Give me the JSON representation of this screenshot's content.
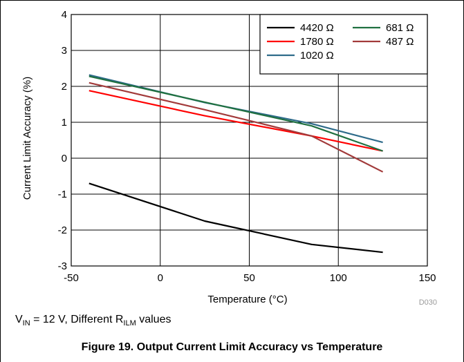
{
  "chart_data": {
    "type": "line",
    "xlabel": "Temperature (°C)",
    "ylabel": "Current Limit Accuracy (%)",
    "xlim": [
      -50,
      150
    ],
    "ylim": [
      -3,
      4
    ],
    "xticks": [
      "-50",
      "0",
      "50",
      "100",
      "150"
    ],
    "yticks": [
      "-3",
      "-2",
      "-1",
      "0",
      "1",
      "2",
      "3",
      "4"
    ],
    "grid": true,
    "legend_position": "top-right",
    "series": [
      {
        "name": "4420 Ω",
        "color": "#000000",
        "x": [
          -40,
          25,
          85,
          125
        ],
        "y": [
          -0.7,
          -1.75,
          -2.4,
          -2.62
        ]
      },
      {
        "name": "1780 Ω",
        "color": "#ff0000",
        "x": [
          -40,
          25,
          85,
          125
        ],
        "y": [
          1.88,
          1.18,
          0.62,
          0.2
        ]
      },
      {
        "name": "1020 Ω",
        "color": "#2e6b8a",
        "x": [
          -40,
          25,
          85,
          125
        ],
        "y": [
          2.32,
          1.55,
          0.96,
          0.44
        ]
      },
      {
        "name": "681 Ω",
        "color": "#1f7040",
        "x": [
          -40,
          25,
          85,
          125
        ],
        "y": [
          2.28,
          1.56,
          0.9,
          0.2
        ]
      },
      {
        "name": "487 Ω",
        "color": "#a23a3a",
        "x": [
          -40,
          25,
          85,
          125
        ],
        "y": [
          2.1,
          1.35,
          0.62,
          -0.38
        ]
      }
    ],
    "doc_code": "D030"
  },
  "note": {
    "v_main": "V",
    "v_sub": "IN",
    "mid": " = 12 V, Different R",
    "r_sub": "ILM",
    "tail": " values"
  },
  "caption": "Figure 19. Output Current Limit Accuracy vs Temperature"
}
